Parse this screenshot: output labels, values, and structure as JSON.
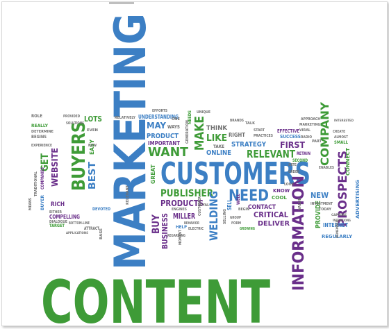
{
  "cloud": {
    "title": "Content Marketing word cloud",
    "words": {
      "content": "CONTENT",
      "marketing": "MARKETING",
      "customers": "CUSTOMERS",
      "information": "INFORMATION",
      "buyers": "BUYERS",
      "prospects": "PROSPECTS",
      "company": "COMPANY",
      "need": "NEED",
      "want": "WANT",
      "make": "MAKE",
      "relevant": "RELEVANT",
      "publisher": "PUBLISHER",
      "products": "PRODUCTS",
      "welding": "WELDING",
      "website": "WEBSITE",
      "best": "BEST",
      "lots": "LOTS",
      "get": "GET",
      "buy": "BUY",
      "business": "BUSINESS",
      "critical": "CRITICAL",
      "deliver": "DELIVER",
      "contact": "CONTACT",
      "first": "FIRST",
      "strategy": "STRATEGY",
      "online": "ONLINE",
      "like": "LIKE",
      "think": "THINK",
      "right": "RIGHT",
      "effective": "EFFECTIVE",
      "success": "SUCCESS",
      "second": "SECOND",
      "retain": "RETAIN",
      "new": "NEW",
      "provide": "PROVIDE",
      "internet": "INTERNET",
      "regularly": "REGULARLY",
      "advertising": "ADVERTISING",
      "connect": "CONNECT",
      "small": "SMALL",
      "create": "CREATE",
      "know": "KNOW",
      "cool": "COOL",
      "may": "MAY",
      "product": "PRODUCT",
      "important": "IMPORTANT",
      "understanding": "UNDERSTANDING",
      "great": "GREAT",
      "miller": "MILLER",
      "help": "HELP",
      "compelling": "COMPELLING",
      "target": "TARGET",
      "attract": "ATTRACT",
      "devoted": "DEVOTED",
      "dialogue": "DIALOGUE",
      "rich": "RICH",
      "buyer": "BUYER",
      "begins": "BEGINS",
      "really": "REALLY",
      "role": "ROLE",
      "easy": "EASY",
      "even": "EVEN",
      "companies": "COMPANIES",
      "behavior": "BEHAVIOR",
      "begin": "BEGIN",
      "group": "GROUP",
      "growing": "GROWING",
      "take": "TAKE",
      "start": "START",
      "practices": "PRACTICES",
      "enables": "ENABLES",
      "almost": "ALMOST",
      "relatively": "RELATIVELY",
      "efforts": "EFFORTS",
      "ways": "WAYS",
      "viral": "VIRAL",
      "needs": "NEEDS",
      "provided": "PROVIDED",
      "determine": "DETERMINE",
      "either": "EITHER",
      "bottom_line": "BOTTOM-LINE",
      "traditional": "TRADITIONAL",
      "means": "MEANS",
      "radio": "RADIO",
      "part": "PART",
      "generation": "GENERATION",
      "engines": "ENGINES",
      "unique": "UNIQUE",
      "relevant_small": "RELEVANT",
      "loyal": "LOYAL",
      "today": "TODAY",
      "sell": "SELL",
      "investment": "INVESTMENT",
      "customer": "CUSTOMER",
      "electric": "ELECTRIC",
      "moment": "MOMENT",
      "value": "VALUE",
      "remember": "REMEMBER",
      "capture": "CAPTURE",
      "intentions": "INTENTIONS",
      "selling": "SELLING",
      "brands": "BRANDS",
      "talk": "TALK",
      "approach": "APPROACH",
      "applications": "APPLICATIONS",
      "solutions": "SOLUTIONS",
      "experience": "EXPERIENCE",
      "regarding": "REGARDING",
      "form": "FORM",
      "look": "LOOK",
      "interested": "INTERESTED",
      "now": "NOW",
      "site": "SITE",
      "order": "ORDER",
      "marketing_small": "MARKETING",
      "one": "ONE",
      "well": "WELL",
      "base": "BASE"
    },
    "colors": {
      "green": "#3e9b37",
      "blue": "#3c7fc4",
      "purple": "#6a2f8a",
      "teal": "#3f8f9a",
      "gray": "#707070",
      "olive": "#7c8f2e",
      "darkgreen": "#2e6f2c",
      "lightblue": "#5fa3d6",
      "violet": "#8a4fa8"
    }
  }
}
